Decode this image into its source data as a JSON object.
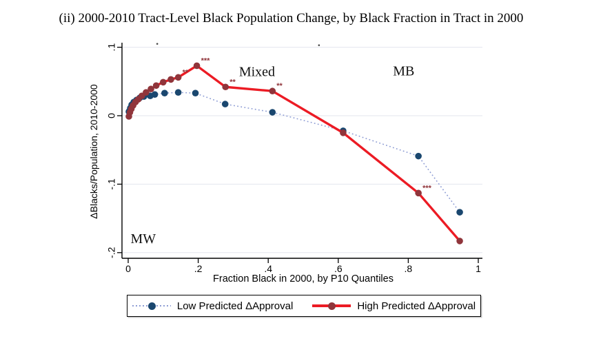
{
  "title": "(ii) 2000-2010 Tract-Level Black Population Change, by Black Fraction in Tract in 2000",
  "colors": {
    "low_line": "#8d9cd4",
    "low_marker": "#1a476f",
    "high_line": "#ec1b24",
    "high_marker": "#90353b",
    "grid": "#e3e6ee",
    "axis": "#000000",
    "stars": "#90353b"
  },
  "chart_data": {
    "type": "line",
    "title": "(ii) 2000-2010 Tract-Level Black Population Change, by Black Fraction in Tract in 2000",
    "xlabel": "Fraction Black in 2000, by P10 Quantiles",
    "ylabel": "ΔBlacks/Population, 2010-2000",
    "xlim": [
      0,
      1
    ],
    "ylim": [
      -0.2,
      0.1
    ],
    "xticks": [
      0,
      0.2,
      0.4,
      0.6,
      0.8,
      1
    ],
    "xtick_labels": [
      "0",
      ".2",
      ".4",
      ".6",
      ".8",
      "1"
    ],
    "yticks": [
      0.1,
      0,
      -0.1,
      -0.2
    ],
    "ytick_labels": [
      ".1",
      "0",
      "-.1",
      "-.2"
    ],
    "grid": true,
    "legend_position": "bottom",
    "series": [
      {
        "name": "Low Predicted ΔApproval",
        "style": "dotted",
        "line_color": "#8d9cd4",
        "marker_color": "#1a476f",
        "points": [
          [
            0.002,
            0.006
          ],
          [
            0.006,
            0.011
          ],
          [
            0.01,
            0.016
          ],
          [
            0.016,
            0.02
          ],
          [
            0.024,
            0.023
          ],
          [
            0.033,
            0.026
          ],
          [
            0.045,
            0.028
          ],
          [
            0.063,
            0.029
          ],
          [
            0.076,
            0.031
          ],
          [
            0.104,
            0.033
          ],
          [
            0.143,
            0.034
          ],
          [
            0.192,
            0.033
          ],
          [
            0.277,
            0.017
          ],
          [
            0.412,
            0.005
          ],
          [
            0.614,
            -0.022
          ],
          [
            0.829,
            -0.059
          ],
          [
            0.947,
            -0.141
          ]
        ]
      },
      {
        "name": "High Predicted ΔApproval",
        "style": "solid",
        "line_color": "#ec1b24",
        "marker_color": "#90353b",
        "points": [
          [
            0.002,
            -0.001
          ],
          [
            0.005,
            0.005
          ],
          [
            0.009,
            0.01
          ],
          [
            0.014,
            0.015
          ],
          [
            0.021,
            0.02
          ],
          [
            0.029,
            0.024
          ],
          [
            0.039,
            0.029
          ],
          [
            0.051,
            0.034
          ],
          [
            0.065,
            0.039
          ],
          [
            0.08,
            0.044
          ],
          [
            0.1,
            0.049
          ],
          [
            0.122,
            0.053
          ],
          [
            0.143,
            0.056
          ],
          [
            0.196,
            0.073
          ],
          [
            0.278,
            0.042
          ],
          [
            0.412,
            0.036
          ],
          [
            0.614,
            -0.025
          ],
          [
            0.829,
            -0.113
          ],
          [
            0.947,
            -0.183
          ]
        ],
        "significance": [
          {
            "x": 0.143,
            "y": 0.056,
            "label": "**"
          },
          {
            "x": 0.196,
            "y": 0.073,
            "label": "***"
          },
          {
            "x": 0.278,
            "y": 0.042,
            "label": "**"
          },
          {
            "x": 0.412,
            "y": 0.036,
            "label": "**"
          },
          {
            "x": 0.829,
            "y": -0.113,
            "label": "***"
          }
        ]
      }
    ],
    "annotations": [
      {
        "text": "Mixed",
        "x": 0.368,
        "y": 0.065
      },
      {
        "text": "MB",
        "x": 0.787,
        "y": 0.066
      },
      {
        "text": "MW",
        "x": 0.043,
        "y": -0.179
      }
    ],
    "stray_marks": [
      {
        "x": 0.083,
        "y": 0.105
      },
      {
        "x": 0.545,
        "y": 0.103
      }
    ]
  },
  "legend": {
    "items": [
      {
        "label": "Low Predicted ΔApproval"
      },
      {
        "label": "High Predicted ΔApproval"
      }
    ]
  }
}
